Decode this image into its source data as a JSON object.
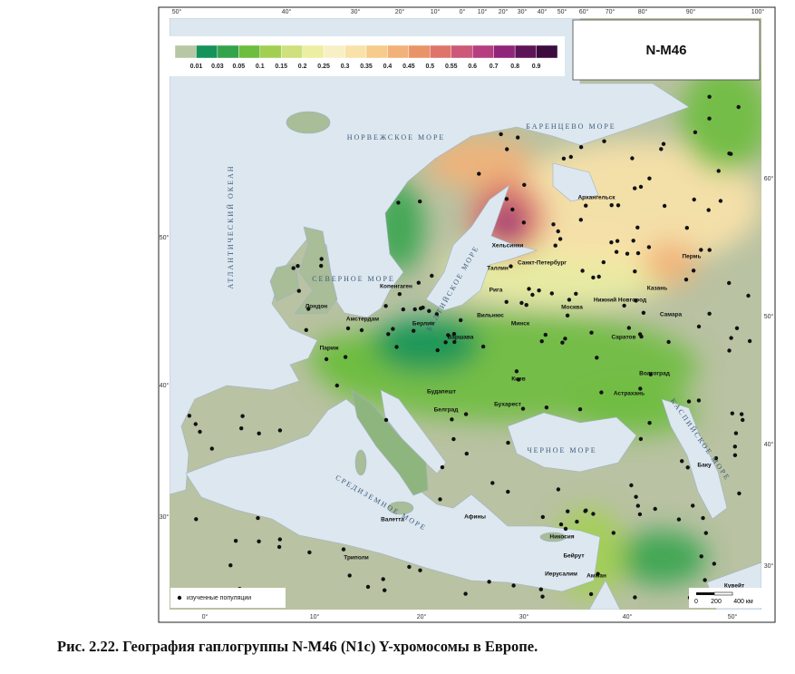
{
  "title": "N-M46",
  "caption": "Рис. 2.22. География гаплогруппы N-M46 (N1c) Y-хромосомы в Европе.",
  "legend_scale": {
    "labels": [
      "0.01",
      "0.03",
      "0.05",
      "0.1",
      "0.15",
      "0.2",
      "0.25",
      "0.3",
      "0.35",
      "0.4",
      "0.45",
      "0.5",
      "0.55",
      "0.6",
      "0.7",
      "0.8",
      "0.9"
    ],
    "colors": [
      "#b7c6a4",
      "#16935a",
      "#34a44c",
      "#6dbd3e",
      "#a2cf52",
      "#cfe07c",
      "#ecefa2",
      "#f8f0c4",
      "#f9e2a8",
      "#f6cb8c",
      "#f2b178",
      "#e99468",
      "#de756a",
      "#cd5879",
      "#b53d80",
      "#912579",
      "#5e1558",
      "#3c0c3e"
    ]
  },
  "marker_legend": "изученные популяции",
  "scale_bar": [
    "0",
    "200",
    "400 км"
  ],
  "graticule": {
    "top": [
      "50°",
      "40°",
      "30°",
      "20°",
      "10°",
      "0°",
      "10°",
      "20°",
      "30°",
      "40°",
      "50°",
      "60°",
      "70°",
      "80°",
      "90°",
      "100°"
    ],
    "bottom": [
      "0°",
      "10°",
      "20°",
      "30°",
      "40°",
      "50°"
    ],
    "left": [
      "50°",
      "40°",
      "30°"
    ],
    "right": [
      "60°",
      "50°",
      "40°",
      "30°"
    ]
  },
  "seas": [
    "АТЛАНТИЧЕСКИЙ ОКЕАН",
    "НОРВЕЖСКОЕ МОРЕ",
    "БАРЕНЦЕВО МОРЕ",
    "СЕВЕРНОЕ МОРЕ",
    "БАЛТИЙСКОЕ МОРЕ",
    "ЧЕРНОЕ МОРЕ",
    "КАСПИЙСКОЕ МОРЕ",
    "СРЕДИЗЕМНОЕ МОРЕ"
  ],
  "cities": [
    "Архангельск",
    "Санкт-Петербург",
    "Рига",
    "Москва",
    "Вильнюс",
    "Минск",
    "Киев",
    "Варшава",
    "Берлин",
    "Копенгаген",
    "Лондон",
    "Париж",
    "Амстердам",
    "Хельсинки",
    "Таллин",
    "Пермь",
    "Казань",
    "Нижний Новгород",
    "Самара",
    "Саратов",
    "Волгоград",
    "Астрахань",
    "Баку",
    "Валетта",
    "Никосия",
    "Бейрут",
    "Иерусалим",
    "Амман",
    "Кувейт",
    "Триполи",
    "Афины",
    "Будапешт",
    "Белград",
    "Бухарест"
  ]
}
